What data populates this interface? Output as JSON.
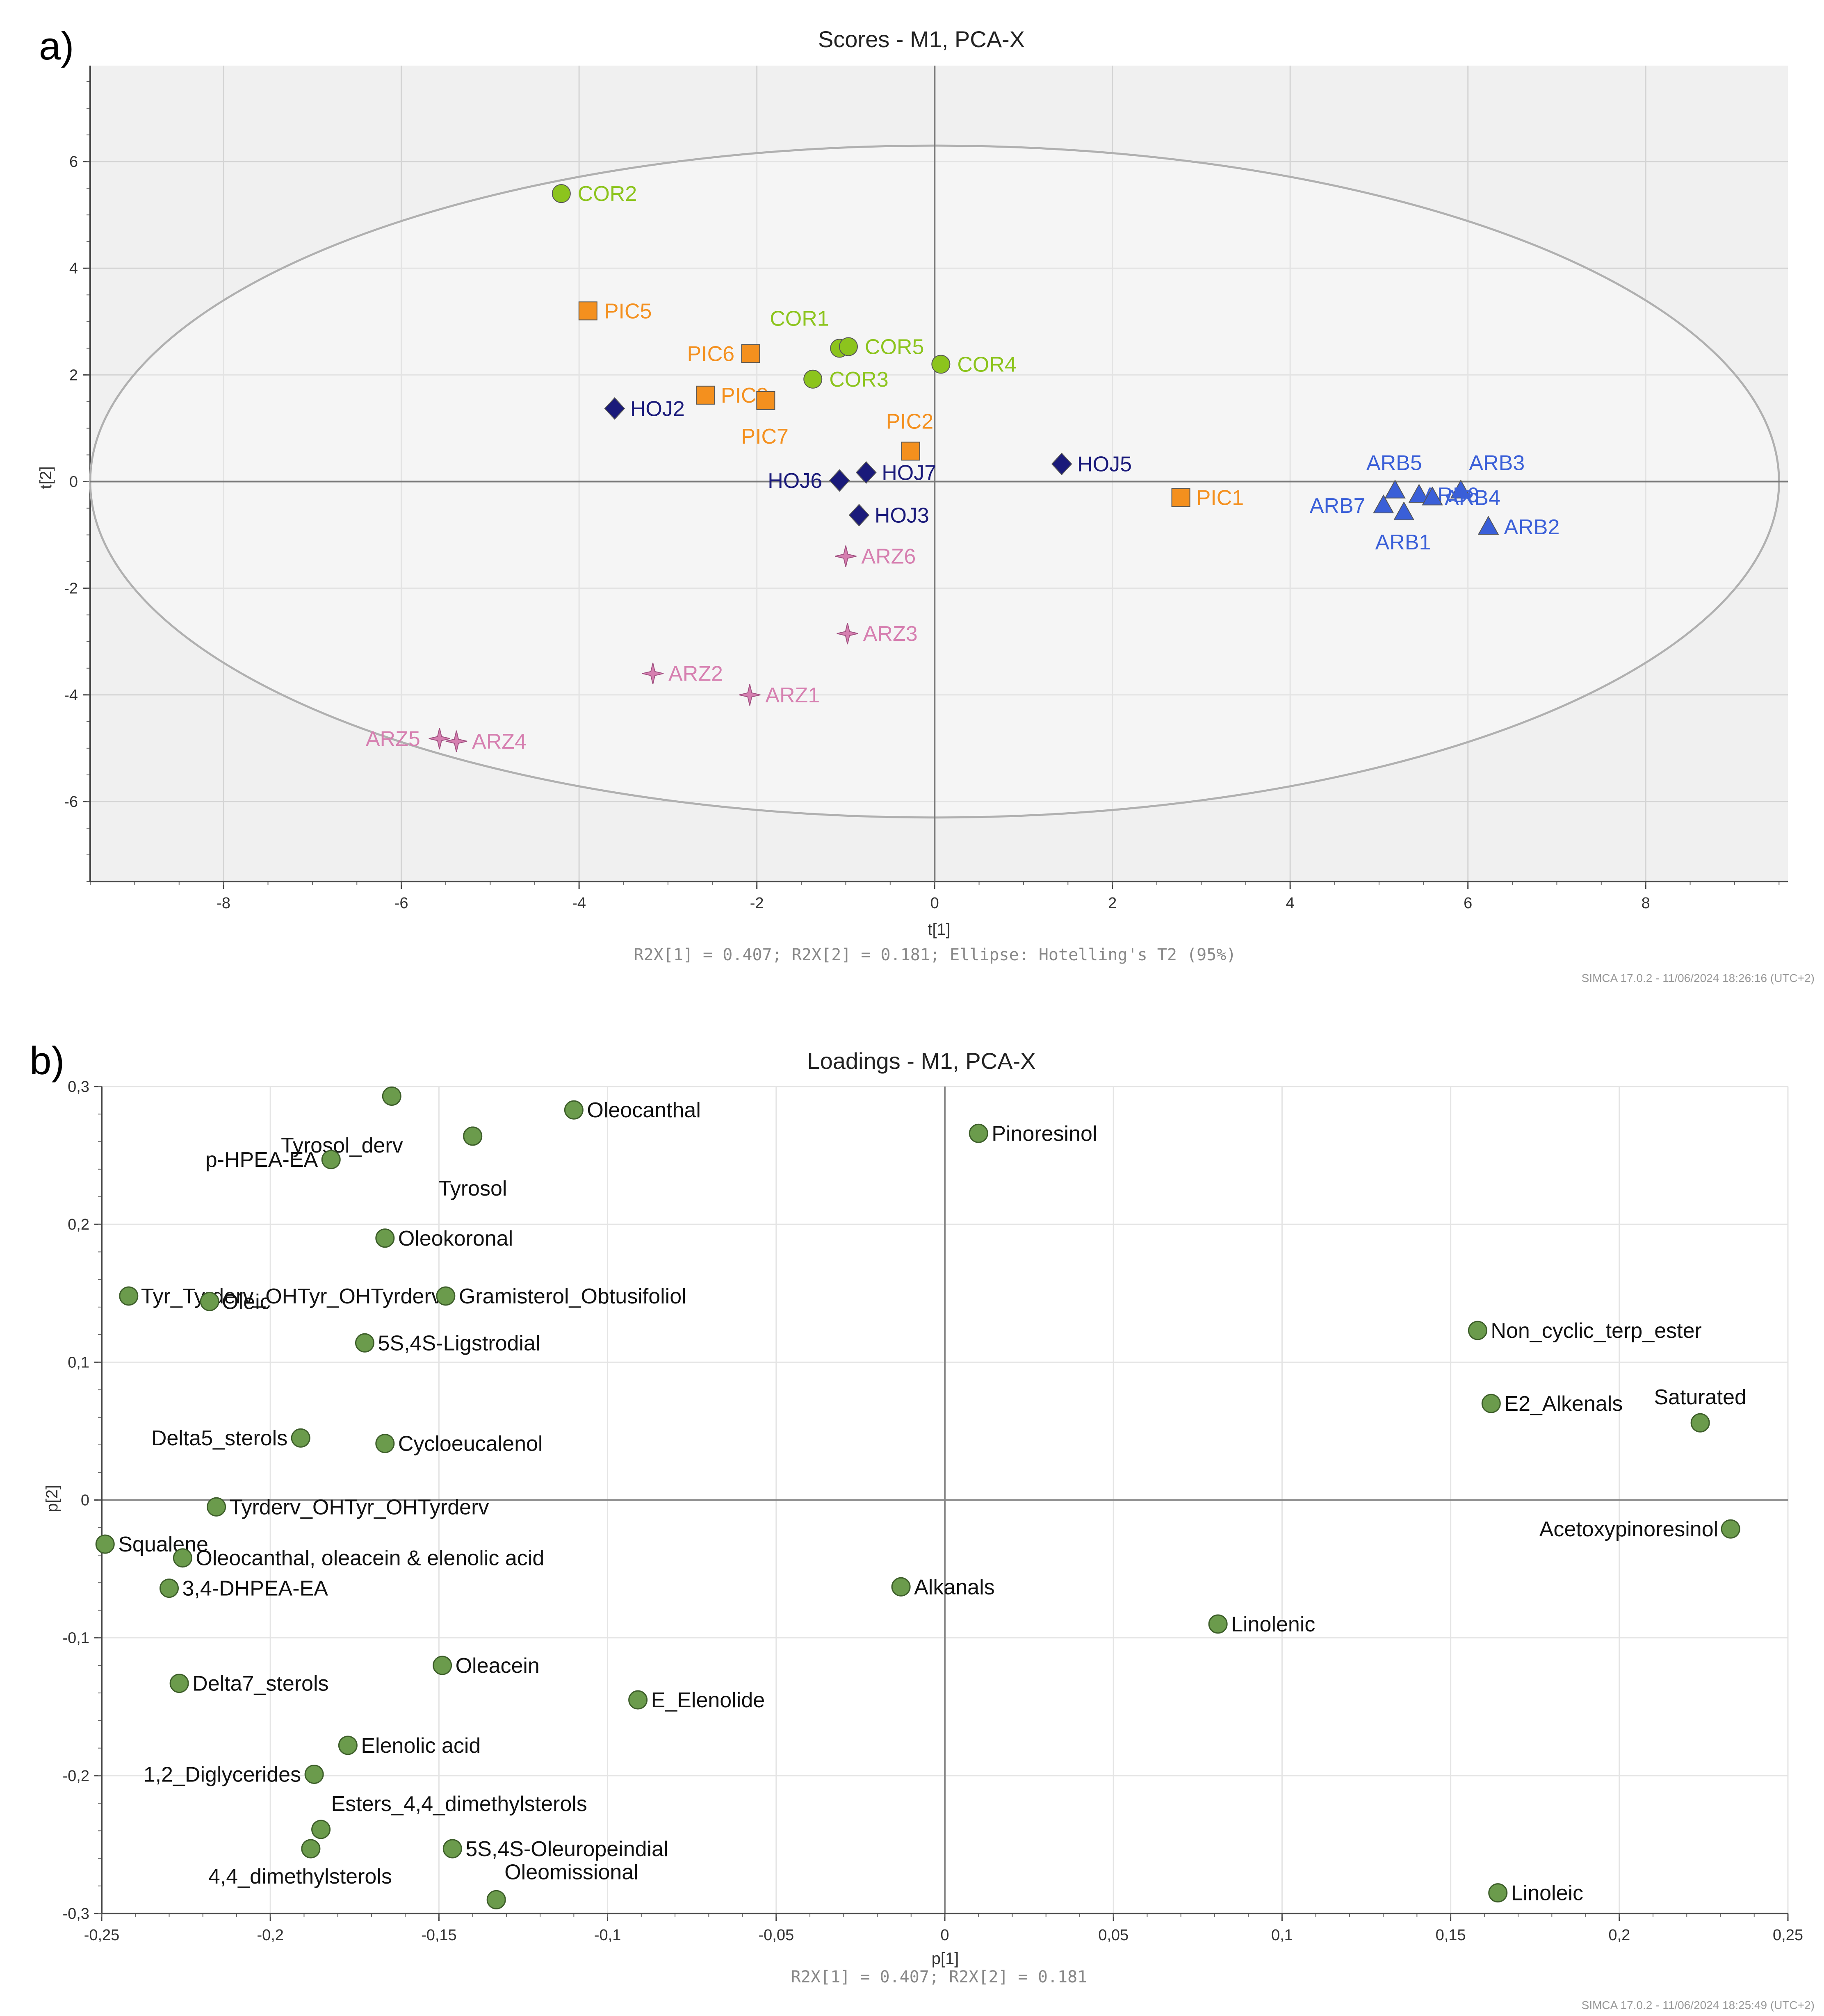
{
  "panel_a": {
    "letter": "a)",
    "footer": "R2X[1] = 0.407; R2X[2] = 0.181; Ellipse: Hotelling's T2 (95%)",
    "stamp": "SIMCA 17.0.2 - 11/06/2024 18:26:16 (UTC+2)"
  },
  "panel_b": {
    "letter": "b)",
    "footer": "R2X[1] = 0.407; R2X[2] = 0.181",
    "stamp": "SIMCA 17.0.2 - 11/06/2024 18:25:49 (UTC+2)"
  },
  "colors": {
    "COR": "#8cc41d",
    "PIC": "#f4901e",
    "HOJ": "#1a1a7a",
    "ARB": "#3a5fd8",
    "ARZ": "#d67fb0",
    "loading": "#6b9b4c",
    "plot_bg": "#f0f0f0",
    "grid": "#d4d4d4"
  },
  "chart_data": [
    {
      "type": "scatter",
      "title": "Scores - M1, PCA-X",
      "xlabel": "t[1]",
      "ylabel": "t[2]",
      "xlim": [
        -9.5,
        9.6
      ],
      "ylim": [
        -7.5,
        7.8
      ],
      "xticks": [
        -8,
        -6,
        -4,
        -2,
        0,
        2,
        4,
        6,
        8
      ],
      "yticks": [
        -6,
        -4,
        -2,
        0,
        2,
        4,
        6
      ],
      "grid": true,
      "ellipse": {
        "a": 9.5,
        "b": 6.3,
        "label": "Hotelling's T2 (95%)"
      },
      "series": [
        {
          "name": "COR",
          "marker": "circle",
          "color": "#8cc41d",
          "points": [
            {
              "label": "COR2",
              "x": -4.2,
              "y": 5.4
            },
            {
              "label": "COR1",
              "x": -1.07,
              "y": 2.5
            },
            {
              "label": "COR5",
              "x": -0.97,
              "y": 2.53
            },
            {
              "label": "COR4",
              "x": 0.07,
              "y": 2.2
            },
            {
              "label": "COR3",
              "x": -1.37,
              "y": 1.92
            }
          ]
        },
        {
          "name": "PIC",
          "marker": "square",
          "color": "#f4901e",
          "points": [
            {
              "label": "PIC5",
              "x": -3.9,
              "y": 3.2
            },
            {
              "label": "PIC6",
              "x": -2.07,
              "y": 2.4
            },
            {
              "label": "PIC3",
              "x": -2.58,
              "y": 1.62
            },
            {
              "label": "PIC7",
              "x": -1.9,
              "y": 1.52
            },
            {
              "label": "PIC2",
              "x": -0.27,
              "y": 0.57
            },
            {
              "label": "PIC1",
              "x": 2.77,
              "y": -0.3
            }
          ]
        },
        {
          "name": "HOJ",
          "marker": "diamond",
          "color": "#1a1a7a",
          "points": [
            {
              "label": "HOJ2",
              "x": -3.6,
              "y": 1.37
            },
            {
              "label": "HOJ5",
              "x": 1.43,
              "y": 0.33
            },
            {
              "label": "HOJ7",
              "x": -0.77,
              "y": 0.17
            },
            {
              "label": "HOJ6",
              "x": -1.07,
              "y": 0.02
            },
            {
              "label": "HOJ3",
              "x": -0.85,
              "y": -0.63
            }
          ]
        },
        {
          "name": "ARB",
          "marker": "triangle",
          "color": "#3a5fd8",
          "points": [
            {
              "label": "ARB5",
              "x": 5.18,
              "y": -0.17
            },
            {
              "label": "ARB3",
              "x": 5.92,
              "y": -0.17
            },
            {
              "label": "ARB6",
              "x": 5.45,
              "y": -0.25
            },
            {
              "label": "ARB4",
              "x": 5.6,
              "y": -0.3
            },
            {
              "label": "ARB7",
              "x": 5.05,
              "y": -0.45
            },
            {
              "label": "ARB1",
              "x": 5.28,
              "y": -0.58
            },
            {
              "label": "ARB2",
              "x": 6.23,
              "y": -0.85
            }
          ]
        },
        {
          "name": "ARZ",
          "marker": "star",
          "color": "#d67fb0",
          "points": [
            {
              "label": "ARZ6",
              "x": -1.0,
              "y": -1.4
            },
            {
              "label": "ARZ3",
              "x": -0.98,
              "y": -2.85
            },
            {
              "label": "ARZ2",
              "x": -3.17,
              "y": -3.6
            },
            {
              "label": "ARZ1",
              "x": -2.08,
              "y": -4.0
            },
            {
              "label": "ARZ5",
              "x": -5.57,
              "y": -4.82
            },
            {
              "label": "ARZ4",
              "x": -5.38,
              "y": -4.87
            }
          ]
        }
      ]
    },
    {
      "type": "scatter",
      "title": "Loadings - M1, PCA-X",
      "xlabel": "p[1]",
      "ylabel": "p[2]",
      "xlim": [
        -0.25,
        0.25
      ],
      "ylim": [
        -0.3,
        0.3
      ],
      "xticks": [
        "-0,25",
        "-0,2",
        "-0,15",
        "-0,1",
        "-0,05",
        "0",
        "0,05",
        "0,1",
        "0,15",
        "0,2",
        "0,25"
      ],
      "yticks": [
        "-0,3",
        "-0,2",
        "-0,1",
        "0",
        "0,1",
        "0,2",
        "0,3"
      ],
      "grid": true,
      "points": [
        {
          "label": "",
          "x": -0.164,
          "y": 0.293
        },
        {
          "label": "Oleocanthal",
          "x": -0.11,
          "y": 0.283
        },
        {
          "label": "Tyrosol_derv",
          "x": -0.14,
          "y": 0.264
        },
        {
          "label": "Tyrosol",
          "x": -0.14,
          "y": 0.264
        },
        {
          "label": "Pinoresinol",
          "x": 0.01,
          "y": 0.266
        },
        {
          "label": "p-HPEA-EA",
          "x": -0.182,
          "y": 0.247
        },
        {
          "label": "Oleokoronal",
          "x": -0.166,
          "y": 0.19
        },
        {
          "label": "Tyr_Tyrderv_OHTyr_OHTyrderv",
          "x": -0.242,
          "y": 0.148
        },
        {
          "label": "Oleic",
          "x": -0.218,
          "y": 0.144
        },
        {
          "label": "Gramisterol_Obtusifoliol",
          "x": -0.148,
          "y": 0.148
        },
        {
          "label": "Non_cyclic_terp_ester",
          "x": 0.158,
          "y": 0.123
        },
        {
          "label": "5S,4S-Ligstrodial",
          "x": -0.172,
          "y": 0.114
        },
        {
          "label": "E2_Alkenals",
          "x": 0.162,
          "y": 0.07
        },
        {
          "label": "Saturated",
          "x": 0.224,
          "y": 0.056
        },
        {
          "label": "Delta5_sterols",
          "x": -0.191,
          "y": 0.045
        },
        {
          "label": "Cycloeucalenol",
          "x": -0.166,
          "y": 0.041
        },
        {
          "label": "Tyrderv_OHTyr_OHTyrderv",
          "x": -0.216,
          "y": -0.005
        },
        {
          "label": "Acetoxypinoresinol",
          "x": 0.233,
          "y": -0.021
        },
        {
          "label": "Squalene",
          "x": -0.249,
          "y": -0.032
        },
        {
          "label": "Oleocanthal, oleacein & elenolic acid",
          "x": -0.226,
          "y": -0.042
        },
        {
          "label": "3,4-DHPEA-EA",
          "x": -0.23,
          "y": -0.064
        },
        {
          "label": "Alkanals",
          "x": -0.013,
          "y": -0.063
        },
        {
          "label": "Linolenic",
          "x": 0.081,
          "y": -0.09
        },
        {
          "label": "Oleacein",
          "x": -0.149,
          "y": -0.12
        },
        {
          "label": "Delta7_sterols",
          "x": -0.227,
          "y": -0.133
        },
        {
          "label": "E_Elenolide",
          "x": -0.091,
          "y": -0.145
        },
        {
          "label": "Elenolic acid",
          "x": -0.177,
          "y": -0.178
        },
        {
          "label": "1,2_Diglycerides",
          "x": -0.187,
          "y": -0.199
        },
        {
          "label": "Esters_4,4_dimethylsterols",
          "x": -0.185,
          "y": -0.239
        },
        {
          "label": "5S,4S-Oleuropeindial",
          "x": -0.146,
          "y": -0.253
        },
        {
          "label": "4,4_dimethylsterols",
          "x": -0.188,
          "y": -0.253
        },
        {
          "label": "Oleomissional",
          "x": -0.133,
          "y": -0.29
        },
        {
          "label": "Linoleic",
          "x": 0.164,
          "y": -0.285
        }
      ]
    }
  ]
}
